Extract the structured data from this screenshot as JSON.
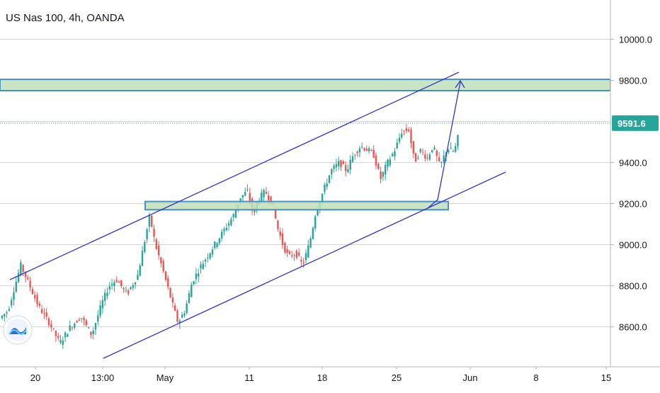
{
  "header": {
    "title": "US Nas 100, 4h, OANDA"
  },
  "price_badge": {
    "value": "9591.6",
    "color": "#26a69a"
  },
  "chart_data": {
    "type": "candlestick",
    "title": "US Nas 100, 4h, OANDA",
    "y_axis": {
      "ticks": [
        {
          "value": 8600,
          "label": "8600.0"
        },
        {
          "value": 8800,
          "label": "8800.0"
        },
        {
          "value": 9000,
          "label": "9000.0"
        },
        {
          "value": 9200,
          "label": "9200.0"
        },
        {
          "value": 9400,
          "label": "9400.0"
        },
        {
          "value": 9800,
          "label": "9800.0"
        },
        {
          "value": 10000,
          "label": "10000.0"
        }
      ],
      "range": [
        8450,
        10220
      ]
    },
    "x_axis": {
      "ticks": [
        "20",
        "13:00",
        "May",
        "11",
        "18",
        "25",
        "Jun",
        "8",
        "15"
      ]
    },
    "horizontal_levels": [
      8600,
      8800,
      9000,
      9200,
      9400,
      9600,
      9800,
      10000
    ],
    "last_price": 9591.6,
    "zones": [
      {
        "name": "resistance-zone",
        "from": 9750,
        "to": 9805
      },
      {
        "name": "support-zone",
        "from": 9170,
        "to": 9210
      }
    ],
    "colors": {
      "up": "#26a69a",
      "down": "#ef5350",
      "level": "#f0e04a",
      "channel": "#3333cc",
      "zone_fill": "#bfe0b8",
      "zone_border": "#4a90c8"
    }
  }
}
